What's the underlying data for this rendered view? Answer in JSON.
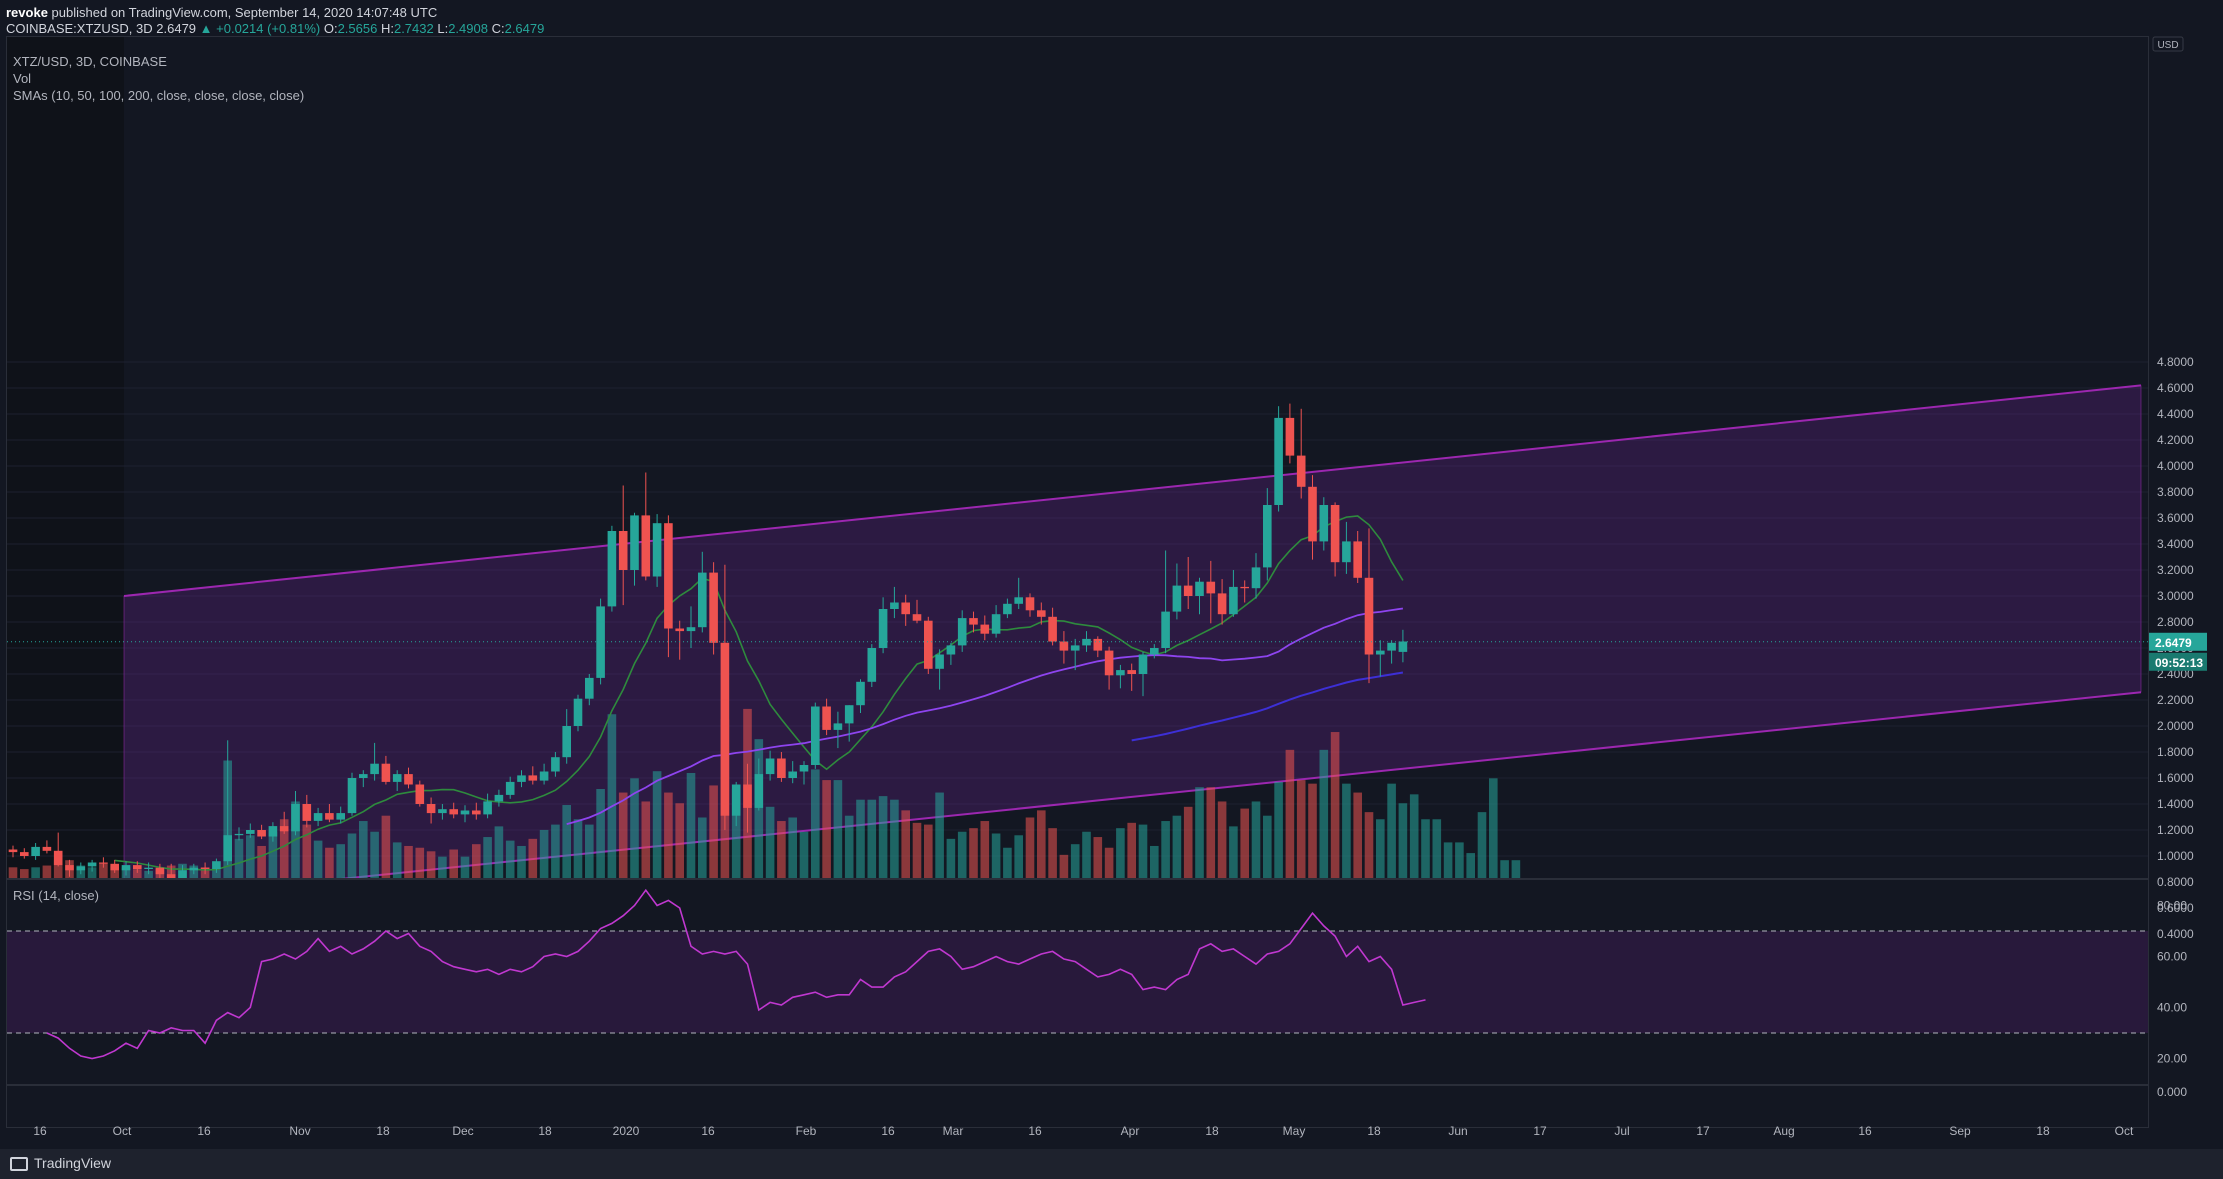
{
  "header": {
    "publisher": "revoke",
    "published_text": "published on TradingView.com, September 14, 2020 14:07:48 UTC",
    "symbol": "COINBASE:XTZUSD, 3D",
    "last": "2.6479",
    "change": "▲ +0.0214 (+0.81%)",
    "o_label": "O:",
    "o": "2.5656",
    "h_label": "H:",
    "h": "2.7432",
    "l_label": "L:",
    "l": "2.4908",
    "c_label": "C:",
    "c": "2.6479"
  },
  "legend": {
    "pair": "XTZ/USD, 3D, COINBASE",
    "vol": "Vol",
    "smas": "SMAs (10, 50, 100, 200, close, close, close, close)",
    "rsi": "RSI (14, close)"
  },
  "axis": {
    "currency": "USD",
    "price_ticks": [
      "4.8000",
      "4.6000",
      "4.4000",
      "4.2000",
      "4.0000",
      "3.8000",
      "3.6000",
      "3.4000",
      "3.2000",
      "3.0000",
      "2.8000",
      "2.6000",
      "2.4000",
      "2.2000",
      "2.0000",
      "1.8000",
      "1.6000",
      "1.4000",
      "1.2000",
      "1.0000",
      "0.8000",
      "0.6000",
      "0.4000"
    ],
    "rsi_ticks": [
      "80.00",
      "60.00",
      "40.00",
      "20.00"
    ],
    "empty_tick": "0.000",
    "x_ticks": [
      "16",
      "Oct",
      "16",
      "Nov",
      "18",
      "Dec",
      "18",
      "2020",
      "16",
      "Feb",
      "16",
      "Mar",
      "16",
      "Apr",
      "18",
      "May",
      "18",
      "Jun",
      "17",
      "Jul",
      "17",
      "Aug",
      "16",
      "Sep",
      "18",
      "Oct"
    ],
    "last_price_label": "2.6479",
    "countdown_label": "09:52:13"
  },
  "footer": {
    "brand": "TradingView"
  },
  "colors": {
    "up": "#26a69a",
    "down": "#ef5350",
    "channel": "#9c27b0",
    "sma10": "#2e8b3d",
    "sma50": "#8e44ef",
    "sma100": "#3d2fd6",
    "rsi": "#c038d0"
  },
  "chart_data": {
    "type": "candlestick",
    "symbol": "XTZ/USD",
    "interval": "3D",
    "exchange": "COINBASE",
    "y_range": [
      0.4,
      4.8
    ],
    "candles": [
      [
        1.05,
        1.08,
        0.99,
        1.03
      ],
      [
        1.03,
        1.06,
        0.98,
        1.0
      ],
      [
        1.0,
        1.1,
        0.97,
        1.07
      ],
      [
        1.07,
        1.12,
        1.02,
        1.04
      ],
      [
        1.04,
        1.18,
        0.92,
        0.93
      ],
      [
        0.93,
        0.97,
        0.84,
        0.89
      ],
      [
        0.89,
        0.95,
        0.86,
        0.92
      ],
      [
        0.92,
        0.97,
        0.88,
        0.95
      ],
      [
        0.95,
        0.99,
        0.91,
        0.94
      ],
      [
        0.94,
        0.97,
        0.87,
        0.89
      ],
      [
        0.89,
        0.96,
        0.85,
        0.93
      ],
      [
        0.93,
        0.96,
        0.87,
        0.9
      ],
      [
        0.9,
        0.95,
        0.86,
        0.91
      ],
      [
        0.91,
        0.94,
        0.83,
        0.86
      ],
      [
        0.86,
        0.94,
        0.79,
        0.8
      ],
      [
        0.8,
        0.93,
        0.78,
        0.89
      ],
      [
        0.89,
        0.94,
        0.86,
        0.91
      ],
      [
        0.91,
        0.95,
        0.86,
        0.9
      ],
      [
        0.9,
        0.98,
        0.87,
        0.96
      ],
      [
        0.96,
        1.89,
        0.93,
        1.16
      ],
      [
        1.16,
        1.22,
        1.12,
        1.17
      ],
      [
        1.17,
        1.25,
        1.14,
        1.2
      ],
      [
        1.2,
        1.24,
        1.13,
        1.15
      ],
      [
        1.15,
        1.26,
        1.11,
        1.23
      ],
      [
        1.23,
        1.34,
        1.17,
        1.19
      ],
      [
        1.19,
        1.5,
        1.16,
        1.4
      ],
      [
        1.4,
        1.47,
        1.22,
        1.27
      ],
      [
        1.27,
        1.37,
        1.23,
        1.33
      ],
      [
        1.33,
        1.4,
        1.26,
        1.28
      ],
      [
        1.28,
        1.38,
        1.25,
        1.33
      ],
      [
        1.33,
        1.64,
        1.31,
        1.6
      ],
      [
        1.6,
        1.66,
        1.53,
        1.63
      ],
      [
        1.63,
        1.87,
        1.58,
        1.71
      ],
      [
        1.71,
        1.77,
        1.55,
        1.57
      ],
      [
        1.57,
        1.66,
        1.5,
        1.63
      ],
      [
        1.63,
        1.68,
        1.52,
        1.55
      ],
      [
        1.55,
        1.58,
        1.38,
        1.4
      ],
      [
        1.4,
        1.45,
        1.25,
        1.33
      ],
      [
        1.33,
        1.4,
        1.28,
        1.36
      ],
      [
        1.36,
        1.41,
        1.29,
        1.32
      ],
      [
        1.32,
        1.39,
        1.26,
        1.35
      ],
      [
        1.35,
        1.41,
        1.28,
        1.32
      ],
      [
        1.32,
        1.48,
        1.29,
        1.42
      ],
      [
        1.42,
        1.51,
        1.38,
        1.47
      ],
      [
        1.47,
        1.61,
        1.44,
        1.57
      ],
      [
        1.57,
        1.66,
        1.53,
        1.62
      ],
      [
        1.62,
        1.69,
        1.55,
        1.58
      ],
      [
        1.58,
        1.71,
        1.55,
        1.65
      ],
      [
        1.65,
        1.8,
        1.61,
        1.76
      ],
      [
        1.76,
        2.13,
        1.71,
        2.0
      ],
      [
        2.0,
        2.24,
        1.96,
        2.21
      ],
      [
        2.21,
        2.4,
        2.16,
        2.37
      ],
      [
        2.37,
        2.98,
        2.32,
        2.92
      ],
      [
        2.92,
        3.54,
        2.88,
        3.5
      ],
      [
        3.5,
        3.85,
        2.93,
        3.2
      ],
      [
        3.2,
        3.64,
        3.08,
        3.62
      ],
      [
        3.62,
        3.95,
        3.12,
        3.15
      ],
      [
        3.15,
        3.63,
        3.07,
        3.56
      ],
      [
        3.56,
        3.62,
        2.53,
        2.75
      ],
      [
        2.75,
        2.81,
        2.51,
        2.73
      ],
      [
        2.73,
        2.92,
        2.6,
        2.76
      ],
      [
        2.76,
        3.34,
        2.72,
        3.18
      ],
      [
        3.18,
        3.26,
        2.55,
        2.64
      ],
      [
        2.64,
        3.24,
        1.2,
        1.31
      ],
      [
        1.31,
        1.57,
        1.23,
        1.55
      ],
      [
        1.55,
        1.71,
        1.18,
        1.37
      ],
      [
        1.37,
        1.75,
        1.35,
        1.63
      ],
      [
        1.63,
        1.81,
        1.58,
        1.75
      ],
      [
        1.75,
        1.8,
        1.57,
        1.6
      ],
      [
        1.6,
        1.73,
        1.56,
        1.65
      ],
      [
        1.65,
        1.73,
        1.55,
        1.7
      ],
      [
        1.7,
        2.18,
        1.67,
        2.15
      ],
      [
        2.15,
        2.21,
        1.93,
        1.97
      ],
      [
        1.97,
        2.11,
        1.83,
        2.02
      ],
      [
        2.02,
        2.16,
        1.88,
        2.16
      ],
      [
        2.16,
        2.36,
        2.1,
        2.34
      ],
      [
        2.34,
        2.63,
        2.3,
        2.6
      ],
      [
        2.6,
        2.99,
        2.56,
        2.9
      ],
      [
        2.9,
        3.07,
        2.83,
        2.95
      ],
      [
        2.95,
        3.01,
        2.77,
        2.86
      ],
      [
        2.86,
        2.97,
        2.79,
        2.81
      ],
      [
        2.81,
        2.84,
        2.4,
        2.44
      ],
      [
        2.44,
        2.59,
        2.28,
        2.55
      ],
      [
        2.55,
        2.64,
        2.47,
        2.62
      ],
      [
        2.62,
        2.89,
        2.57,
        2.83
      ],
      [
        2.83,
        2.88,
        2.72,
        2.78
      ],
      [
        2.78,
        2.85,
        2.66,
        2.71
      ],
      [
        2.71,
        2.93,
        2.68,
        2.86
      ],
      [
        2.86,
        2.98,
        2.83,
        2.94
      ],
      [
        2.94,
        3.14,
        2.9,
        2.99
      ],
      [
        2.99,
        3.02,
        2.84,
        2.89
      ],
      [
        2.89,
        2.95,
        2.78,
        2.84
      ],
      [
        2.84,
        2.91,
        2.62,
        2.65
      ],
      [
        2.65,
        2.73,
        2.48,
        2.58
      ],
      [
        2.58,
        2.67,
        2.43,
        2.62
      ],
      [
        2.62,
        2.73,
        2.57,
        2.67
      ],
      [
        2.67,
        2.69,
        2.53,
        2.58
      ],
      [
        2.58,
        2.61,
        2.28,
        2.39
      ],
      [
        2.39,
        2.47,
        2.29,
        2.43
      ],
      [
        2.43,
        2.48,
        2.27,
        2.4
      ],
      [
        2.4,
        2.57,
        2.23,
        2.55
      ],
      [
        2.55,
        2.63,
        2.52,
        2.6
      ],
      [
        2.6,
        3.35,
        2.56,
        2.88
      ],
      [
        2.88,
        3.25,
        2.82,
        3.08
      ],
      [
        3.08,
        3.3,
        2.9,
        3.0
      ],
      [
        3.0,
        3.14,
        2.86,
        3.11
      ],
      [
        3.11,
        3.27,
        2.79,
        3.02
      ],
      [
        3.02,
        3.13,
        2.78,
        2.86
      ],
      [
        2.86,
        3.2,
        2.84,
        3.07
      ],
      [
        3.07,
        3.12,
        2.95,
        3.06
      ],
      [
        3.06,
        3.33,
        2.98,
        3.22
      ],
      [
        3.22,
        3.83,
        3.12,
        3.7
      ],
      [
        3.7,
        4.46,
        3.65,
        4.37
      ],
      [
        4.37,
        4.48,
        4.02,
        4.08
      ],
      [
        4.08,
        4.44,
        3.75,
        3.84
      ],
      [
        3.84,
        3.93,
        3.28,
        3.42
      ],
      [
        3.42,
        3.76,
        3.35,
        3.7
      ],
      [
        3.7,
        3.72,
        3.15,
        3.26
      ],
      [
        3.26,
        3.57,
        3.17,
        3.42
      ],
      [
        3.42,
        3.5,
        3.1,
        3.14
      ],
      [
        3.14,
        3.52,
        2.33,
        2.55
      ],
      [
        2.55,
        2.66,
        2.38,
        2.58
      ],
      [
        2.58,
        2.66,
        2.48,
        2.64
      ],
      [
        2.57,
        2.74,
        2.49,
        2.65
      ]
    ],
    "volume_relative": [
      0.06,
      0.05,
      0.06,
      0.07,
      0.1,
      0.1,
      0.07,
      0.06,
      0.08,
      0.07,
      0.06,
      0.05,
      0.04,
      0.05,
      0.07,
      0.08,
      0.07,
      0.06,
      0.05,
      0.66,
      0.22,
      0.24,
      0.18,
      0.26,
      0.33,
      0.43,
      0.3,
      0.21,
      0.17,
      0.19,
      0.25,
      0.32,
      0.26,
      0.35,
      0.2,
      0.18,
      0.17,
      0.15,
      0.12,
      0.16,
      0.12,
      0.19,
      0.23,
      0.29,
      0.21,
      0.18,
      0.22,
      0.27,
      0.3,
      0.41,
      0.33,
      0.3,
      0.5,
      0.92,
      0.48,
      0.56,
      0.43,
      0.6,
      0.48,
      0.42,
      0.59,
      0.34,
      0.52,
      0.89,
      0.5,
      0.95,
      0.78,
      0.4,
      0.32,
      0.34,
      0.26,
      0.61,
      0.55,
      0.55,
      0.35,
      0.44,
      0.44,
      0.46,
      0.44,
      0.38,
      0.31,
      0.3,
      0.48,
      0.22,
      0.26,
      0.28,
      0.32,
      0.25,
      0.17,
      0.24,
      0.34,
      0.38,
      0.28,
      0.13,
      0.19,
      0.26,
      0.23,
      0.17,
      0.28,
      0.31,
      0.3,
      0.18,
      0.32,
      0.35,
      0.4,
      0.51,
      0.51,
      0.43,
      0.29,
      0.39,
      0.43,
      0.35,
      0.54,
      0.72,
      0.55,
      0.53,
      0.72,
      0.82,
      0.53,
      0.48,
      0.37,
      0.33,
      0.53,
      0.42,
      0.47,
      0.33,
      0.33,
      0.2,
      0.2,
      0.14,
      0.37,
      0.56,
      0.1,
      0.1
    ],
    "rsi": [
      30,
      28,
      24,
      21,
      20,
      21,
      23,
      26,
      24,
      31,
      30,
      32,
      31,
      31,
      26,
      35,
      38,
      36,
      40,
      58,
      59,
      61,
      59,
      62,
      67,
      62,
      64,
      61,
      63,
      66,
      70,
      67,
      69,
      64,
      62,
      58,
      56,
      55,
      54,
      55,
      53,
      55,
      54,
      56,
      60,
      61,
      60,
      62,
      66,
      71,
      73,
      76,
      80,
      86,
      80,
      82,
      79,
      64,
      61,
      62,
      61,
      62,
      57,
      39,
      42,
      41,
      44,
      45,
      46,
      44,
      45,
      45,
      51,
      48,
      48,
      52,
      54,
      58,
      62,
      63,
      60,
      55,
      56,
      58,
      60,
      58,
      57,
      59,
      61,
      62,
      59,
      58,
      55,
      52,
      53,
      55,
      53,
      47,
      48,
      47,
      51,
      53,
      63,
      65,
      62,
      63,
      60,
      57,
      61,
      62,
      65,
      71,
      77,
      72,
      68,
      60,
      64,
      58,
      60,
      55,
      41,
      42,
      43
    ],
    "rsi_levels": [
      70,
      30
    ],
    "rsi_range": [
      10,
      90
    ],
    "last_price": 2.6479,
    "channel": {
      "upper": [
        [
          0,
          3.0
        ],
        [
          1.0,
          4.62
        ]
      ],
      "lower": [
        [
          0,
          0.65
        ],
        [
          1.0,
          2.26
        ]
      ]
    }
  }
}
